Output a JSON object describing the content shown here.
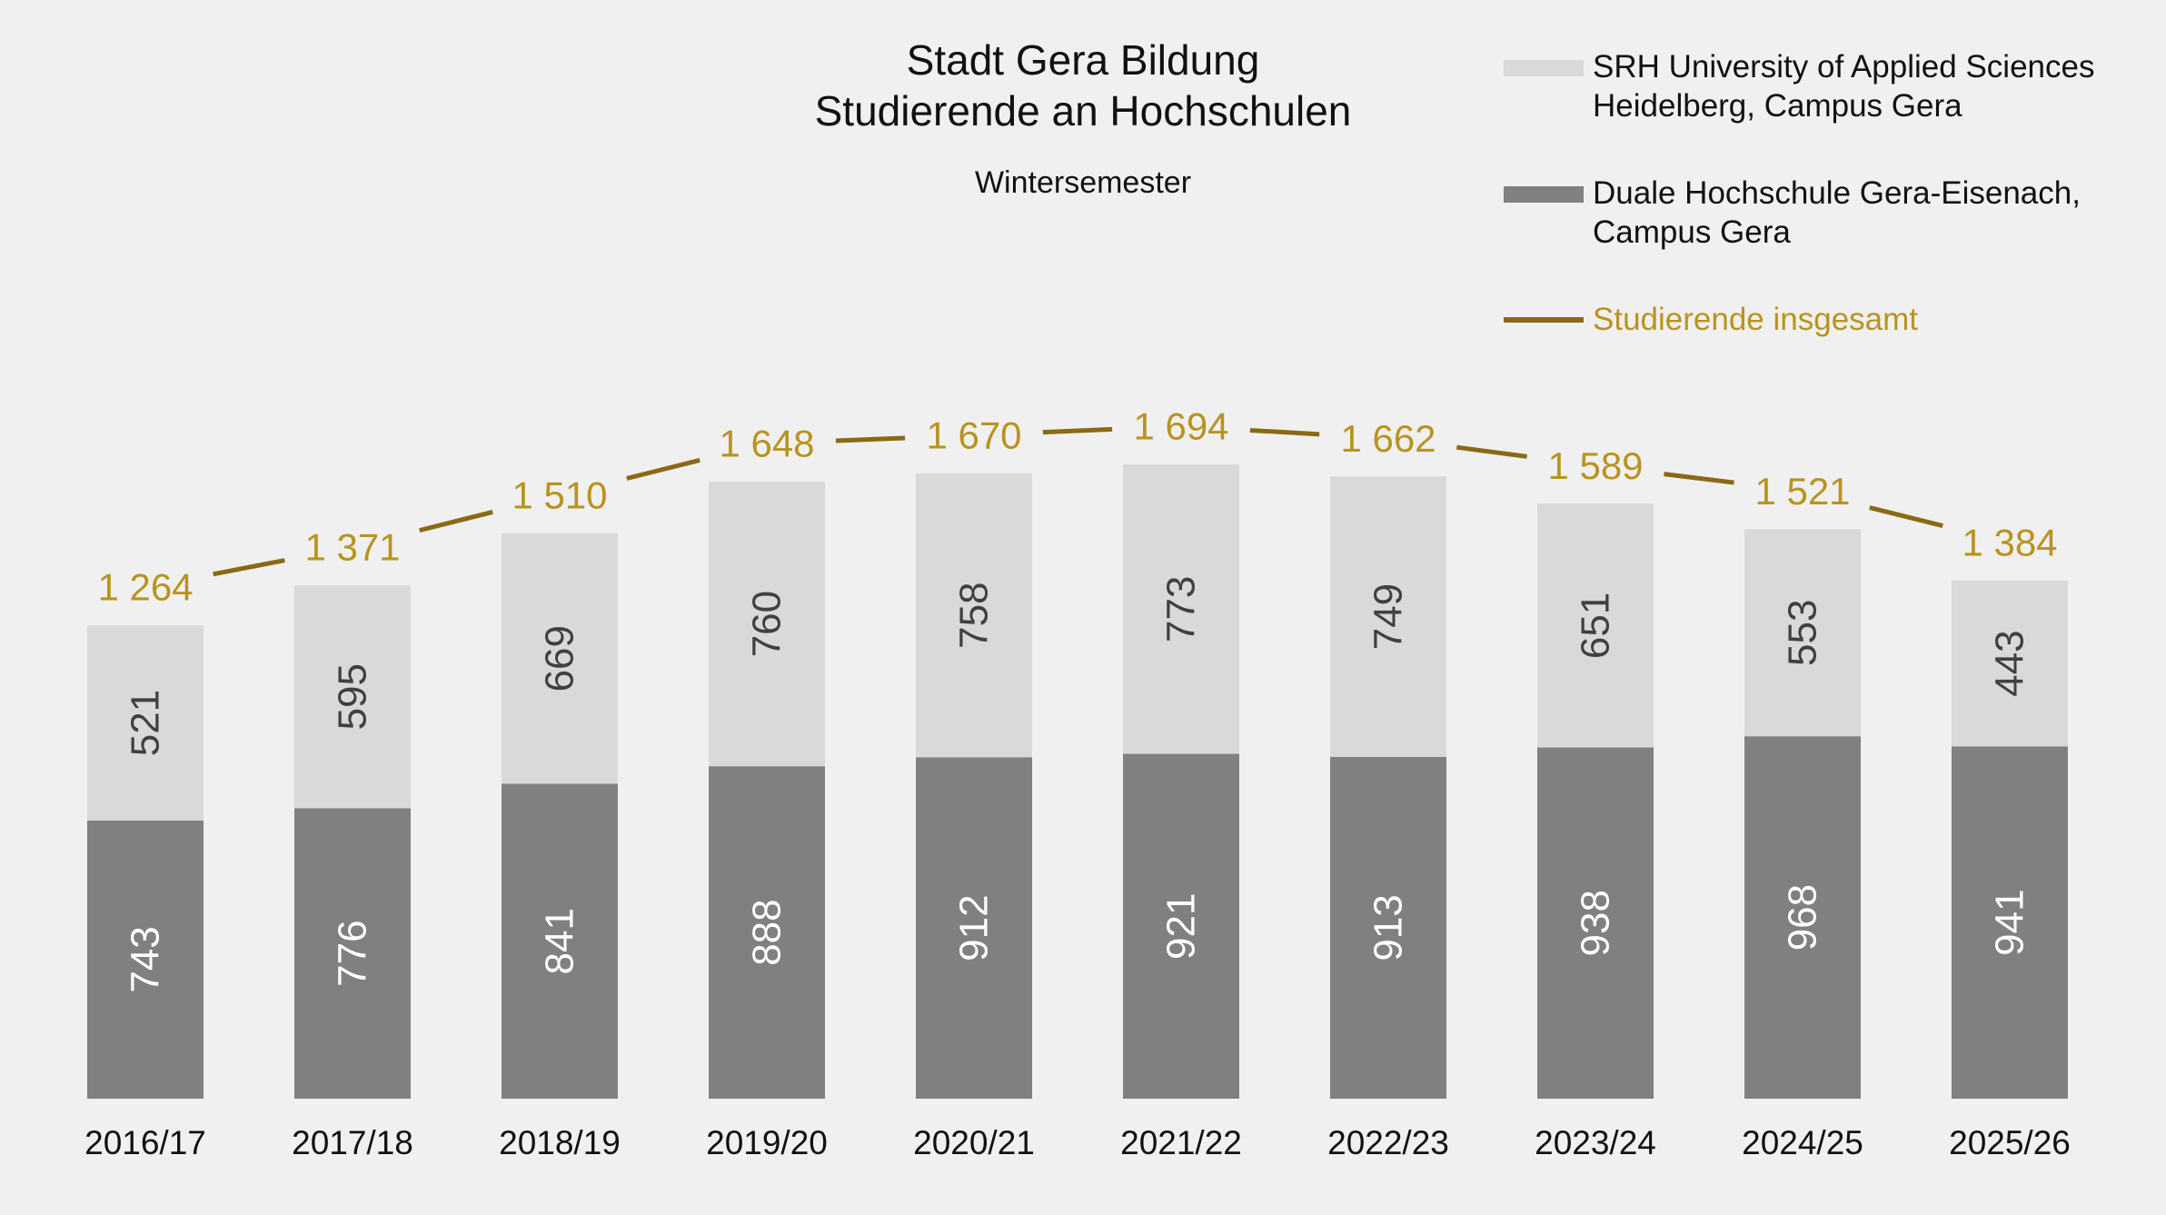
{
  "chart_data": {
    "type": "bar",
    "stacked": true,
    "title": [
      "Stadt Gera Bildung",
      "Studierende an Hochschulen"
    ],
    "subtitle": "Wintersemester",
    "categories": [
      "2016/17",
      "2017/18",
      "2018/19",
      "2019/20",
      "2020/21",
      "2021/22",
      "2022/23",
      "2023/24",
      "2024/25",
      "2025/26"
    ],
    "series": [
      {
        "name": "Duale Hochschule Gera-Eisenach, Campus Gera",
        "legend_lines": [
          "Duale Hochschule Gera-Eisenach,",
          "Campus Gera"
        ],
        "color": "#808080",
        "label_color": "#ffffff",
        "values": [
          743,
          776,
          841,
          888,
          912,
          921,
          913,
          938,
          968,
          941
        ]
      },
      {
        "name": "SRH University of Applied Sciences Heidelberg, Campus Gera",
        "legend_lines": [
          "SRH University of Applied Sciences",
          "Heidelberg, Campus Gera"
        ],
        "color": "#d9d9d9",
        "label_color": "#404040",
        "values": [
          521,
          595,
          669,
          760,
          758,
          773,
          749,
          651,
          553,
          443
        ]
      }
    ],
    "total": {
      "name": "Studierende insgesamt",
      "type": "line",
      "color": "#8b6914",
      "label_color": "#b8941f",
      "values": [
        1264,
        1371,
        1510,
        1648,
        1670,
        1694,
        1662,
        1589,
        1521,
        1384
      ],
      "labels": [
        "1 264",
        "1 371",
        "1 510",
        "1 648",
        "1 670",
        "1 694",
        "1 662",
        "1 589",
        "1 521",
        "1 384"
      ]
    },
    "ylim": [
      0,
      2000
    ],
    "grid": false,
    "legend_position": "top-right"
  }
}
